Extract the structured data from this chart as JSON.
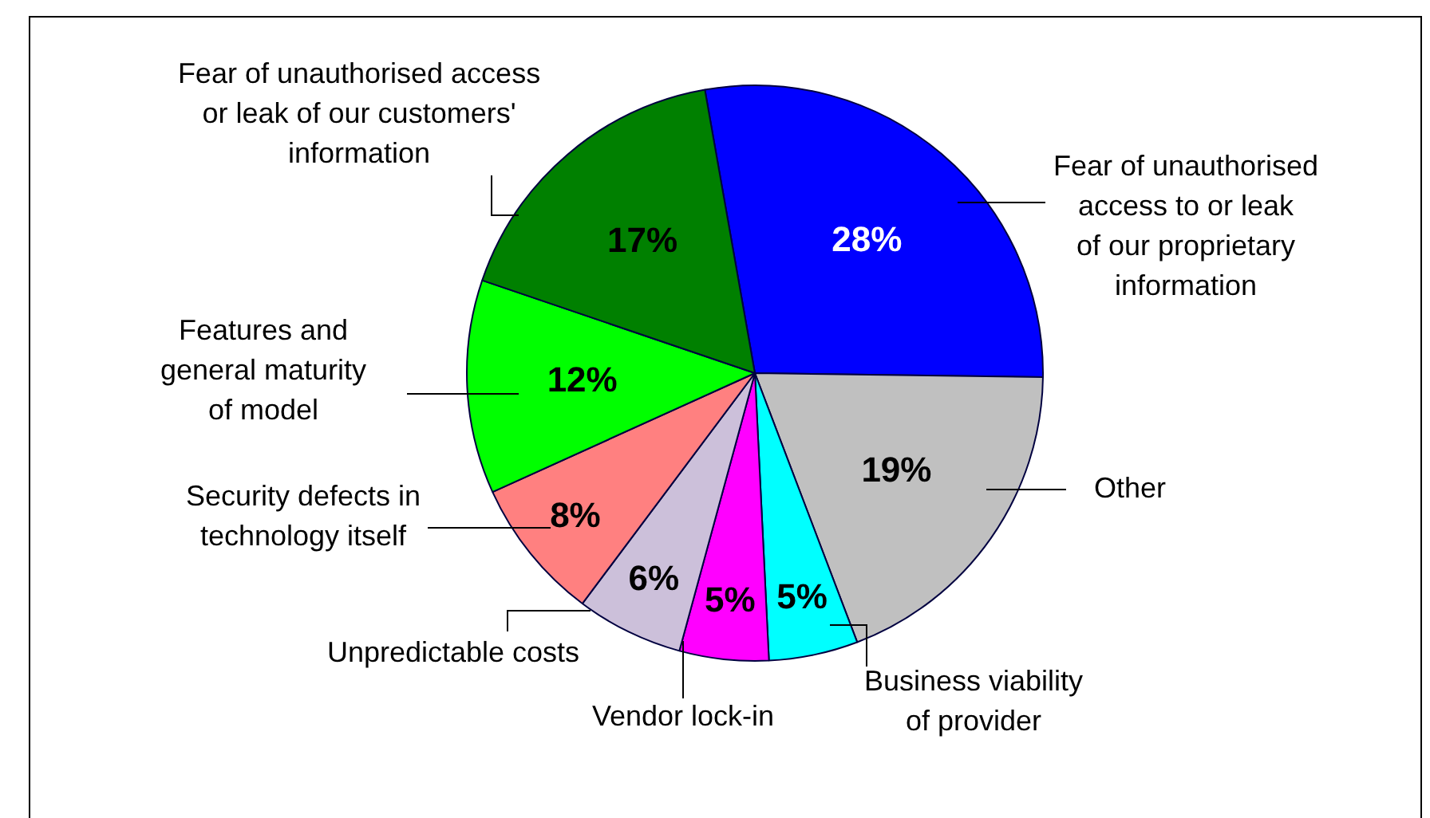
{
  "chart_data": {
    "type": "pie",
    "categories": [
      "Fear of unauthorised\naccess to or leak\nof our proprietary\ninformation",
      "Other",
      "Business viability\nof provider",
      "Vendor lock-in",
      "Unpredictable costs",
      "Security defects in\ntechnology itself",
      "Features and\ngeneral maturity\nof model",
      "Fear of unauthorised access\nor leak of our customers'\ninformation"
    ],
    "values": [
      28,
      19,
      5,
      5,
      6,
      8,
      12,
      17
    ],
    "colors": [
      "#0000ff",
      "#c0c0c0",
      "#00ffff",
      "#ff00ff",
      "#ccc0da",
      "#ff8080",
      "#00ff00",
      "#008000"
    ],
    "value_labels": [
      "28%",
      "19%",
      "5%",
      "5%",
      "6%",
      "8%",
      "12%",
      "17%"
    ]
  }
}
